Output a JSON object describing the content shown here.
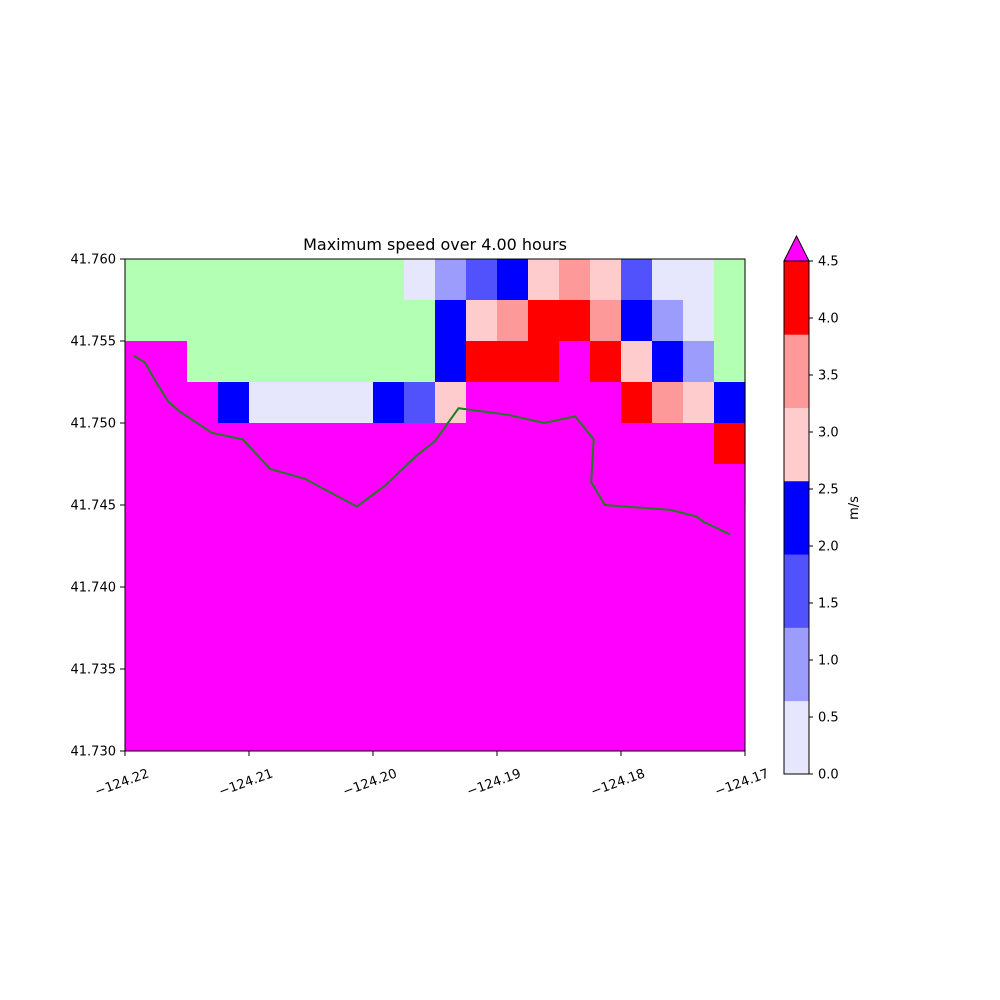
{
  "chart_data": {
    "type": "heatmap",
    "title": "Maximum speed over 4.00 hours",
    "x_ticks": [
      {
        "value": -124.22,
        "label": "−124.22"
      },
      {
        "value": -124.21,
        "label": "−124.21"
      },
      {
        "value": -124.2,
        "label": "−124.20"
      },
      {
        "value": -124.19,
        "label": "−124.19"
      },
      {
        "value": -124.18,
        "label": "−124.18"
      },
      {
        "value": -124.17,
        "label": "−124.17"
      }
    ],
    "y_ticks": [
      {
        "value": 41.73,
        "label": "41.730"
      },
      {
        "value": 41.735,
        "label": "41.735"
      },
      {
        "value": 41.74,
        "label": "41.740"
      },
      {
        "value": 41.745,
        "label": "41.745"
      },
      {
        "value": 41.75,
        "label": "41.750"
      },
      {
        "value": 41.755,
        "label": "41.755"
      },
      {
        "value": 41.76,
        "label": "41.760"
      }
    ],
    "xlim": [
      -124.22,
      -124.17
    ],
    "ylim": [
      41.73,
      41.76
    ],
    "grid_columns": 20,
    "land_value": null,
    "grid_rows_top_to_bottom": [
      [
        null,
        null,
        null,
        null,
        null,
        null,
        null,
        null,
        null,
        0.25,
        0.75,
        1.25,
        1.75,
        2.25,
        2.75,
        2.25,
        1.25,
        0.25,
        0.25,
        null
      ],
      [
        null,
        null,
        null,
        null,
        null,
        null,
        null,
        null,
        null,
        null,
        1.75,
        2.25,
        2.75,
        3.25,
        3.25,
        2.75,
        1.75,
        0.75,
        0.25,
        null
      ],
      [
        5,
        5,
        null,
        null,
        null,
        null,
        null,
        null,
        null,
        null,
        1.75,
        3.25,
        3.25,
        3.25,
        5,
        3.25,
        2.25,
        1.75,
        0.75,
        null
      ],
      [
        5,
        5,
        5,
        1.75,
        0.25,
        0.25,
        0.25,
        0.25,
        1.75,
        1.25,
        2.25,
        5,
        5,
        5,
        5,
        5,
        3.25,
        2.75,
        2.25,
        1.75
      ],
      [
        5,
        5,
        5,
        5,
        5,
        5,
        5,
        5,
        5,
        5,
        5,
        5,
        5,
        5,
        5,
        5,
        5,
        5,
        5,
        3.25
      ],
      [
        5,
        5,
        5,
        5,
        5,
        5,
        5,
        5,
        5,
        5,
        5,
        5,
        5,
        5,
        5,
        5,
        5,
        5,
        5,
        5
      ]
    ],
    "coastline": [
      [
        -124.2193,
        41.7541
      ],
      [
        -124.2184,
        41.7537
      ],
      [
        -124.2175,
        41.7525
      ],
      [
        -124.2165,
        41.7513
      ],
      [
        -124.2156,
        41.7507
      ],
      [
        -124.214,
        41.7499
      ],
      [
        -124.213,
        41.7494
      ],
      [
        -124.2105,
        41.749
      ],
      [
        -124.2083,
        41.7472
      ],
      [
        -124.2055,
        41.7466
      ],
      [
        -124.2013,
        41.7449
      ],
      [
        -124.199,
        41.7462
      ],
      [
        -124.1965,
        41.748
      ],
      [
        -124.195,
        41.7489
      ],
      [
        -124.1931,
        41.7509
      ],
      [
        -124.1891,
        41.7505
      ],
      [
        -124.1862,
        41.75
      ],
      [
        -124.1837,
        41.7504
      ],
      [
        -124.1822,
        41.749
      ],
      [
        -124.1824,
        41.7464
      ],
      [
        -124.1813,
        41.745
      ],
      [
        -124.176,
        41.7447
      ],
      [
        -124.1739,
        41.7443
      ],
      [
        -124.1734,
        41.744
      ],
      [
        -124.1712,
        41.7432
      ]
    ],
    "colorbar": {
      "label": "m/s",
      "extend": "max",
      "bounds": [
        0.0,
        0.5,
        1.0,
        1.5,
        2.0,
        2.5,
        3.0,
        4.5
      ],
      "tick_labels": [
        "0.0",
        "0.5",
        "1.0",
        "1.5",
        "2.0",
        "2.5",
        "3.0",
        "3.5",
        "4.0",
        "4.5"
      ],
      "tick_values": [
        0.0,
        0.5,
        1.0,
        1.5,
        2.0,
        2.5,
        3.0,
        3.5,
        4.0,
        4.5
      ],
      "colors": [
        "#e6e6fc",
        "#9c9cfc",
        "#5252fc",
        "#0000ff",
        "#fecccc",
        "#fe9999",
        "#ff0000"
      ],
      "over_color": "#ff00ff"
    },
    "land_color": "#b3ffb3",
    "coast_color": "#1f7a1f"
  }
}
